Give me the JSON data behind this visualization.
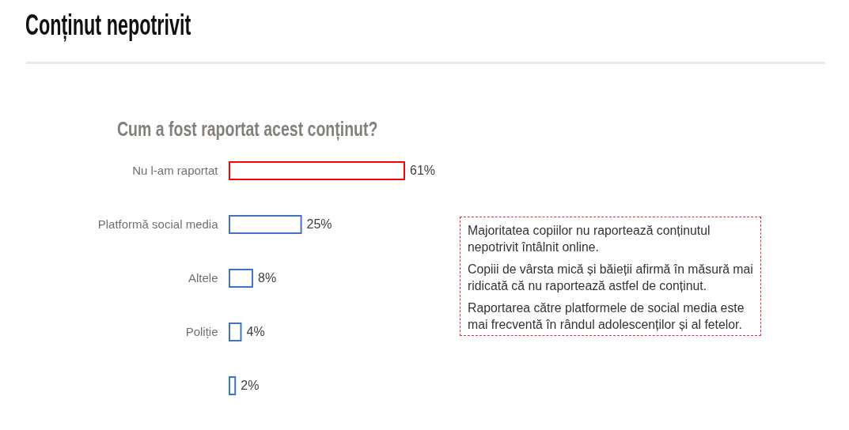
{
  "chart_data": {
    "type": "bar",
    "orientation": "horizontal",
    "title": "Conținut nepotrivit",
    "subtitle": "Cum a fost raportat acest conținut?",
    "categories": [
      "Nu l-am raportat",
      "Platformă social media",
      "Altele",
      "Poliție",
      null
    ],
    "values": [
      61,
      25,
      8,
      4,
      2
    ],
    "colors": [
      "#ff0000",
      "#4472c4",
      "#4472c4",
      "#4472c4",
      "#4472c4"
    ],
    "value_labels": [
      "61%",
      "25%",
      "8%",
      "4%",
      "2%"
    ],
    "tick_labels": "y",
    "annotations": [
      "Majoritatea copiilor nu raportează conținutul nepotrivit întâlnit online.",
      "Copiii de vârsta mică și băieții afirmă în măsură mai ridicată că nu raportează astfel de conținut.",
      "Raportarea către platformele de social media este mai frecventă în rândul adolescenților și al fetelor."
    ]
  }
}
